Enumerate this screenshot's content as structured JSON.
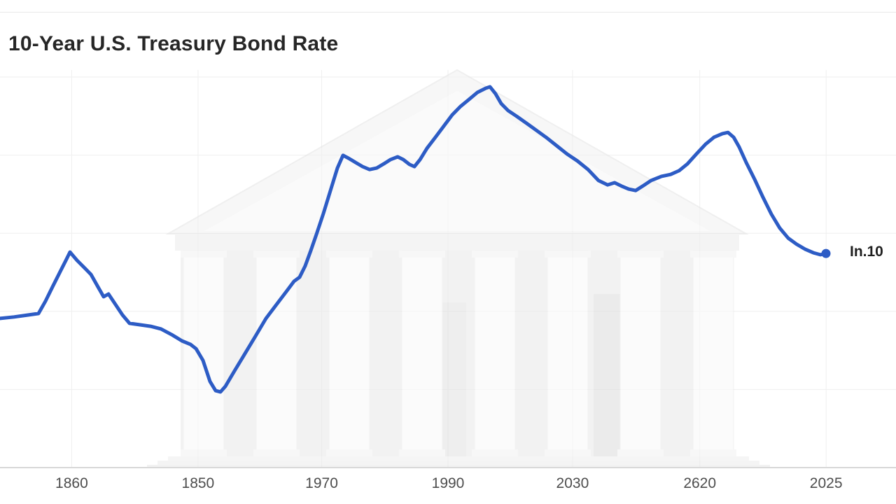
{
  "header": {
    "title": "10-Year U.S. Treasury Bond Rate"
  },
  "chart_data": {
    "type": "line",
    "title": "10-Year U.S. Treasury Bond Rate",
    "series_name": "10-Year U.S. Treasury bond rate (%)",
    "line_color": "#2d5cc5",
    "end_dot_color": "#2d5cc5",
    "axis_line_color": "#d8d8d8",
    "grid_color": "#efefef",
    "tick_label_color": "#4d4d4d",
    "legend_position": "none",
    "grid": "faint",
    "ylim": [
      0,
      16
    ],
    "y_gridlines": [
      3.2,
      6.4,
      9.6,
      12.8,
      16
    ],
    "x_ticks": [
      {
        "pos": 0.08,
        "label": "1860"
      },
      {
        "pos": 0.221,
        "label": "1850"
      },
      {
        "pos": 0.359,
        "label": "1970"
      },
      {
        "pos": 0.5,
        "label": "1990"
      },
      {
        "pos": 0.639,
        "label": "2030"
      },
      {
        "pos": 0.781,
        "label": "2620"
      },
      {
        "pos": 0.922,
        "label": "2025"
      }
    ],
    "end_label": "In.10",
    "points": [
      [
        0.0,
        6.11
      ],
      [
        0.0156,
        6.17
      ],
      [
        0.0313,
        6.25
      ],
      [
        0.043,
        6.31
      ],
      [
        0.0508,
        6.82
      ],
      [
        0.0586,
        7.4
      ],
      [
        0.0664,
        7.97
      ],
      [
        0.0742,
        8.54
      ],
      [
        0.0781,
        8.83
      ],
      [
        0.0859,
        8.49
      ],
      [
        0.0938,
        8.2
      ],
      [
        0.1016,
        7.91
      ],
      [
        0.1094,
        7.4
      ],
      [
        0.1156,
        7.0
      ],
      [
        0.1211,
        7.11
      ],
      [
        0.1289,
        6.68
      ],
      [
        0.1367,
        6.25
      ],
      [
        0.1445,
        5.91
      ],
      [
        0.1563,
        5.85
      ],
      [
        0.168,
        5.79
      ],
      [
        0.1797,
        5.68
      ],
      [
        0.1914,
        5.45
      ],
      [
        0.2031,
        5.19
      ],
      [
        0.2125,
        5.05
      ],
      [
        0.2188,
        4.87
      ],
      [
        0.2266,
        4.39
      ],
      [
        0.2344,
        3.53
      ],
      [
        0.2406,
        3.15
      ],
      [
        0.2461,
        3.1
      ],
      [
        0.2516,
        3.33
      ],
      [
        0.2617,
        3.96
      ],
      [
        0.2734,
        4.67
      ],
      [
        0.2852,
        5.39
      ],
      [
        0.2969,
        6.11
      ],
      [
        0.3086,
        6.68
      ],
      [
        0.3203,
        7.25
      ],
      [
        0.3281,
        7.63
      ],
      [
        0.3344,
        7.8
      ],
      [
        0.3406,
        8.26
      ],
      [
        0.3469,
        8.89
      ],
      [
        0.3531,
        9.55
      ],
      [
        0.3609,
        10.41
      ],
      [
        0.3688,
        11.35
      ],
      [
        0.3766,
        12.27
      ],
      [
        0.3828,
        12.79
      ],
      [
        0.3891,
        12.67
      ],
      [
        0.3969,
        12.5
      ],
      [
        0.4047,
        12.33
      ],
      [
        0.4125,
        12.21
      ],
      [
        0.4203,
        12.27
      ],
      [
        0.4281,
        12.44
      ],
      [
        0.4359,
        12.62
      ],
      [
        0.4438,
        12.73
      ],
      [
        0.45,
        12.62
      ],
      [
        0.457,
        12.42
      ],
      [
        0.4625,
        12.33
      ],
      [
        0.4688,
        12.62
      ],
      [
        0.4766,
        13.08
      ],
      [
        0.4859,
        13.53
      ],
      [
        0.4953,
        13.99
      ],
      [
        0.5047,
        14.45
      ],
      [
        0.5141,
        14.8
      ],
      [
        0.5234,
        15.08
      ],
      [
        0.5328,
        15.37
      ],
      [
        0.5422,
        15.54
      ],
      [
        0.5469,
        15.6
      ],
      [
        0.5531,
        15.31
      ],
      [
        0.5594,
        14.91
      ],
      [
        0.5672,
        14.62
      ],
      [
        0.5766,
        14.39
      ],
      [
        0.5875,
        14.11
      ],
      [
        0.5984,
        13.82
      ],
      [
        0.6094,
        13.53
      ],
      [
        0.6211,
        13.19
      ],
      [
        0.6328,
        12.85
      ],
      [
        0.6445,
        12.56
      ],
      [
        0.6563,
        12.21
      ],
      [
        0.668,
        11.76
      ],
      [
        0.6781,
        11.58
      ],
      [
        0.6859,
        11.67
      ],
      [
        0.6938,
        11.53
      ],
      [
        0.7016,
        11.41
      ],
      [
        0.7094,
        11.35
      ],
      [
        0.7172,
        11.53
      ],
      [
        0.7266,
        11.76
      ],
      [
        0.7383,
        11.93
      ],
      [
        0.7484,
        12.01
      ],
      [
        0.7578,
        12.16
      ],
      [
        0.7672,
        12.44
      ],
      [
        0.7773,
        12.85
      ],
      [
        0.7875,
        13.25
      ],
      [
        0.7969,
        13.53
      ],
      [
        0.8063,
        13.68
      ],
      [
        0.8125,
        13.73
      ],
      [
        0.8188,
        13.53
      ],
      [
        0.825,
        13.13
      ],
      [
        0.8328,
        12.5
      ],
      [
        0.8422,
        11.81
      ],
      [
        0.8516,
        11.07
      ],
      [
        0.8609,
        10.38
      ],
      [
        0.8703,
        9.81
      ],
      [
        0.8797,
        9.4
      ],
      [
        0.8891,
        9.15
      ],
      [
        0.8984,
        8.95
      ],
      [
        0.9078,
        8.8
      ],
      [
        0.9156,
        8.72
      ],
      [
        0.9219,
        8.77
      ]
    ]
  }
}
